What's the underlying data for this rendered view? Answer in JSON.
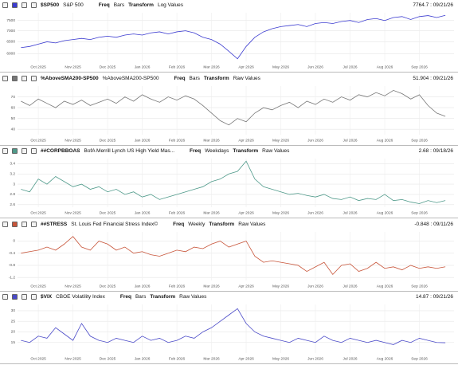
{
  "chart_data": [
    {
      "type": "line",
      "ticker": "$SP500",
      "title": "S&P 500",
      "freq_label": "Freq",
      "freq": "Bars",
      "transform_label": "Transform",
      "transform": "Log Values",
      "last": "7764.7 : 09/21/26",
      "color": "#3b3bd0",
      "log_scale": true,
      "grid": true,
      "x": [
        -0.5,
        -0.25,
        0,
        0.25,
        0.5,
        0.75,
        1,
        1.25,
        1.5,
        1.75,
        2,
        2.25,
        2.5,
        2.75,
        3,
        3.25,
        3.5,
        3.75,
        4,
        4.25,
        4.5,
        4.75,
        5,
        5.25,
        5.5,
        5.75,
        6,
        6.25,
        6.5,
        6.75,
        7,
        7.25,
        7.5,
        7.75,
        8,
        8.25,
        8.5,
        8.75,
        9,
        9.25,
        9.5,
        9.75,
        10,
        10.25,
        10.5,
        10.75,
        11,
        11.25,
        11.5,
        11.75
      ],
      "values": [
        6250,
        6300,
        6400,
        6500,
        6450,
        6550,
        6600,
        6650,
        6600,
        6700,
        6750,
        6700,
        6800,
        6850,
        6800,
        6900,
        6950,
        6850,
        6950,
        7000,
        6900,
        6700,
        6600,
        6400,
        6100,
        5800,
        6300,
        6700,
        6950,
        7100,
        7200,
        7250,
        7300,
        7200,
        7350,
        7400,
        7350,
        7450,
        7500,
        7400,
        7550,
        7600,
        7500,
        7650,
        7700,
        7550,
        7700,
        7750,
        7650,
        7765
      ],
      "xlim": [
        -0.6,
        12
      ],
      "ylim": [
        5700,
        7900
      ],
      "yticks": [
        6000,
        6500,
        7000,
        7500
      ],
      "xticks": [
        {
          "value": 0,
          "label": "Oct 2025"
        },
        {
          "value": 1,
          "label": "Nov 2025"
        },
        {
          "value": 2,
          "label": "Dec 2025"
        },
        {
          "value": 3,
          "label": "Jan 2026"
        },
        {
          "value": 4,
          "label": "Feb 2026"
        },
        {
          "value": 5,
          "label": "Mar 2026"
        },
        {
          "value": 6,
          "label": "Apr 2026"
        },
        {
          "value": 7,
          "label": "May 2026"
        },
        {
          "value": 8,
          "label": "Jun 2026"
        },
        {
          "value": 9,
          "label": "Jul 2026"
        },
        {
          "value": 10,
          "label": "Aug 2026"
        },
        {
          "value": 11,
          "label": "Sep 2026"
        }
      ]
    },
    {
      "type": "line",
      "ticker": "%AboveSMA200-SP500",
      "title": "%AboveSMA200-SP500",
      "freq_label": "Freq",
      "freq": "Bars",
      "transform_label": "Transform",
      "transform": "Raw Values",
      "last": "51.904 : 09/21/26",
      "color": "#777777",
      "log_scale": false,
      "grid": true,
      "x": [
        -0.5,
        -0.25,
        0,
        0.25,
        0.5,
        0.75,
        1,
        1.25,
        1.5,
        1.75,
        2,
        2.25,
        2.5,
        2.75,
        3,
        3.25,
        3.5,
        3.75,
        4,
        4.25,
        4.5,
        4.75,
        5,
        5.25,
        5.5,
        5.75,
        6,
        6.25,
        6.5,
        6.75,
        7,
        7.25,
        7.5,
        7.75,
        8,
        8.25,
        8.5,
        8.75,
        9,
        9.25,
        9.5,
        9.75,
        10,
        10.25,
        10.5,
        10.75,
        11,
        11.25,
        11.5,
        11.75
      ],
      "values": [
        66,
        62,
        68,
        64,
        60,
        66,
        63,
        67,
        62,
        65,
        68,
        64,
        70,
        66,
        72,
        68,
        65,
        70,
        67,
        71,
        68,
        62,
        55,
        48,
        44,
        50,
        47,
        55,
        60,
        58,
        62,
        65,
        60,
        66,
        63,
        68,
        65,
        70,
        67,
        72,
        70,
        74,
        71,
        76,
        73,
        68,
        72,
        62,
        55,
        52
      ],
      "xlim": [
        -0.6,
        12
      ],
      "ylim": [
        35,
        80
      ],
      "yticks": [
        40,
        50,
        60,
        70
      ],
      "xticks": [
        {
          "value": 0,
          "label": "Oct 2025"
        },
        {
          "value": 1,
          "label": "Nov 2025"
        },
        {
          "value": 2,
          "label": "Dec 2025"
        },
        {
          "value": 3,
          "label": "Jan 2026"
        },
        {
          "value": 4,
          "label": "Feb 2026"
        },
        {
          "value": 5,
          "label": "Mar 2026"
        },
        {
          "value": 6,
          "label": "Apr 2026"
        },
        {
          "value": 7,
          "label": "May 2026"
        },
        {
          "value": 8,
          "label": "Jun 2026"
        },
        {
          "value": 9,
          "label": "Jul 2026"
        },
        {
          "value": 10,
          "label": "Aug 2026"
        },
        {
          "value": 11,
          "label": "Sep 2026"
        }
      ]
    },
    {
      "type": "line",
      "ticker": "##CORPBBOAS",
      "title": "BofA Merrill Lynch US High Yield Mas...",
      "freq_label": "Freq",
      "freq": "Weekdays",
      "transform_label": "Transform",
      "transform": "Raw Values",
      "last": "2.68 : 09/18/26",
      "color": "#4f9a8a",
      "log_scale": false,
      "grid": true,
      "x": [
        -0.5,
        -0.25,
        0,
        0.25,
        0.5,
        0.75,
        1,
        1.25,
        1.5,
        1.75,
        2,
        2.25,
        2.5,
        2.75,
        3,
        3.25,
        3.5,
        3.75,
        4,
        4.25,
        4.5,
        4.75,
        5,
        5.25,
        5.5,
        5.75,
        6,
        6.25,
        6.5,
        6.75,
        7,
        7.25,
        7.5,
        7.75,
        8,
        8.25,
        8.5,
        8.75,
        9,
        9.25,
        9.5,
        9.75,
        10,
        10.25,
        10.5,
        10.75,
        11,
        11.25,
        11.5,
        11.75
      ],
      "values": [
        2.9,
        2.85,
        3.1,
        3.0,
        3.15,
        3.05,
        2.95,
        3.0,
        2.9,
        2.95,
        2.85,
        2.9,
        2.8,
        2.85,
        2.75,
        2.8,
        2.7,
        2.75,
        2.8,
        2.85,
        2.9,
        2.95,
        3.05,
        3.1,
        3.2,
        3.25,
        3.45,
        3.1,
        2.95,
        2.9,
        2.85,
        2.8,
        2.82,
        2.78,
        2.75,
        2.8,
        2.72,
        2.7,
        2.75,
        2.68,
        2.72,
        2.7,
        2.8,
        2.68,
        2.7,
        2.65,
        2.62,
        2.68,
        2.64,
        2.68
      ],
      "xlim": [
        -0.6,
        12
      ],
      "ylim": [
        2.55,
        3.5
      ],
      "yticks": [
        2.6,
        2.8,
        3,
        3.2,
        3.4
      ],
      "xticks": [
        {
          "value": 0,
          "label": "Oct 2025"
        },
        {
          "value": 1,
          "label": "Nov 2025"
        },
        {
          "value": 2,
          "label": "Dec 2025"
        },
        {
          "value": 3,
          "label": "Jan 2026"
        },
        {
          "value": 4,
          "label": "Feb 2026"
        },
        {
          "value": 5,
          "label": "Mar 2026"
        },
        {
          "value": 6,
          "label": "Apr 2026"
        },
        {
          "value": 7,
          "label": "May 2026"
        },
        {
          "value": 8,
          "label": "Jun 2026"
        },
        {
          "value": 9,
          "label": "Jul 2026"
        },
        {
          "value": 10,
          "label": "Aug 2026"
        },
        {
          "value": 11,
          "label": "Sep 2026"
        }
      ]
    },
    {
      "type": "line",
      "ticker": "##STRESS",
      "title": "St. Louis Fed Financial Stress Index©",
      "freq_label": "Freq",
      "freq": "Weekly",
      "transform_label": "Transform",
      "transform": "Raw Values",
      "last": "-0.848 : 09/11/26",
      "color": "#c8553a",
      "log_scale": false,
      "grid": true,
      "x": [
        -0.5,
        -0.25,
        0,
        0.25,
        0.5,
        0.75,
        1,
        1.25,
        1.5,
        1.75,
        2,
        2.25,
        2.5,
        2.75,
        3,
        3.25,
        3.5,
        3.75,
        4,
        4.25,
        4.5,
        4.75,
        5,
        5.25,
        5.5,
        5.75,
        6,
        6.25,
        6.5,
        6.75,
        7,
        7.25,
        7.5,
        7.75,
        8,
        8.25,
        8.5,
        8.75,
        9,
        9.25,
        9.5,
        9.75,
        10,
        10.25,
        10.5,
        10.75,
        11,
        11.25,
        11.5,
        11.75
      ],
      "values": [
        -0.4,
        -0.35,
        -0.3,
        -0.2,
        -0.3,
        -0.1,
        0.15,
        -0.2,
        -0.3,
        0.0,
        -0.1,
        -0.3,
        -0.2,
        -0.4,
        -0.35,
        -0.45,
        -0.5,
        -0.4,
        -0.3,
        -0.35,
        -0.2,
        -0.25,
        -0.1,
        0.0,
        -0.2,
        -0.1,
        0.0,
        -0.5,
        -0.7,
        -0.65,
        -0.7,
        -0.75,
        -0.8,
        -1.0,
        -0.85,
        -0.7,
        -1.1,
        -0.8,
        -0.75,
        -1.0,
        -0.9,
        -0.7,
        -0.9,
        -0.85,
        -0.95,
        -0.8,
        -0.9,
        -0.85,
        -0.9,
        -0.848
      ],
      "xlim": [
        -0.6,
        12
      ],
      "ylim": [
        -1.3,
        0.3
      ],
      "yticks": [
        -1.2,
        -0.8,
        -0.4,
        0
      ],
      "xticks": [
        {
          "value": 0,
          "label": "Oct 2025"
        },
        {
          "value": 1,
          "label": "Nov 2025"
        },
        {
          "value": 2,
          "label": "Dec 2025"
        },
        {
          "value": 3,
          "label": "Jan 2026"
        },
        {
          "value": 4,
          "label": "Feb 2026"
        },
        {
          "value": 5,
          "label": "Mar 2026"
        },
        {
          "value": 6,
          "label": "Apr 2026"
        },
        {
          "value": 7,
          "label": "May 2026"
        },
        {
          "value": 8,
          "label": "Jun 2026"
        },
        {
          "value": 9,
          "label": "Jul 2026"
        },
        {
          "value": 10,
          "label": "Aug 2026"
        },
        {
          "value": 11,
          "label": "Sep 2026"
        }
      ]
    },
    {
      "type": "line",
      "ticker": "$VIX",
      "title": "CBOE Volatility Index",
      "freq_label": "Freq",
      "freq": "Bars",
      "transform_label": "Transform",
      "transform": "Raw Values",
      "last": "14.87 : 09/21/26",
      "color": "#4a4ac8",
      "log_scale": false,
      "grid": true,
      "x": [
        -0.5,
        -0.25,
        0,
        0.25,
        0.5,
        0.75,
        1,
        1.25,
        1.5,
        1.75,
        2,
        2.25,
        2.5,
        2.75,
        3,
        3.25,
        3.5,
        3.75,
        4,
        4.25,
        4.5,
        4.75,
        5,
        5.25,
        5.5,
        5.75,
        6,
        6.25,
        6.5,
        6.75,
        7,
        7.25,
        7.5,
        7.75,
        8,
        8.25,
        8.5,
        8.75,
        9,
        9.25,
        9.5,
        9.75,
        10,
        10.25,
        10.5,
        10.75,
        11,
        11.25,
        11.5,
        11.75
      ],
      "values": [
        16,
        15,
        18,
        17,
        22,
        19,
        16,
        24,
        18,
        16,
        15,
        17,
        16,
        15,
        18,
        16,
        17,
        15,
        16,
        18,
        17,
        20,
        22,
        25,
        28,
        31,
        24,
        20,
        18,
        17,
        16,
        15,
        17,
        16,
        15,
        18,
        16,
        15,
        17,
        16,
        15,
        16,
        15,
        14,
        16,
        15,
        17,
        16,
        15,
        14.87
      ],
      "xlim": [
        -0.6,
        12
      ],
      "ylim": [
        10,
        33
      ],
      "yticks": [
        15,
        20,
        25,
        30
      ],
      "xticks": [
        {
          "value": 0,
          "label": "Oct 2025"
        },
        {
          "value": 1,
          "label": "Nov 2025"
        },
        {
          "value": 2,
          "label": "Dec 2025"
        },
        {
          "value": 3,
          "label": "Jan 2026"
        },
        {
          "value": 4,
          "label": "Feb 2026"
        },
        {
          "value": 5,
          "label": "Mar 2026"
        },
        {
          "value": 6,
          "label": "Apr 2026"
        },
        {
          "value": 7,
          "label": "May 2026"
        },
        {
          "value": 8,
          "label": "Jun 2026"
        },
        {
          "value": 9,
          "label": "Jul 2026"
        },
        {
          "value": 10,
          "label": "Aug 2026"
        },
        {
          "value": 11,
          "label": "Sep 2026"
        }
      ]
    }
  ]
}
